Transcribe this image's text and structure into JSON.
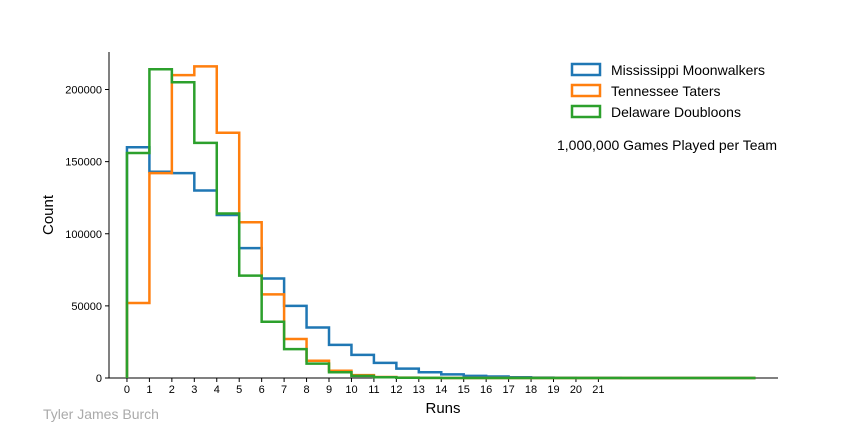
{
  "chart_data": {
    "type": "histogram-step",
    "xlabel": "Runs",
    "ylabel": "Count",
    "xlim": [
      -0.8,
      29
    ],
    "ylim": [
      0,
      226000
    ],
    "x_ticks": [
      0,
      1,
      2,
      3,
      4,
      5,
      6,
      7,
      8,
      9,
      10,
      11,
      12,
      13,
      14,
      15,
      16,
      17,
      18,
      19,
      20,
      21
    ],
    "y_ticks": [
      0,
      50000,
      100000,
      150000,
      200000
    ],
    "bin_edges": [
      0,
      1,
      2,
      3,
      4,
      5,
      6,
      7,
      8,
      9,
      10,
      11,
      12,
      13,
      14,
      15,
      16,
      17,
      18,
      19,
      20,
      21,
      22,
      23,
      24,
      25,
      26,
      27,
      28
    ],
    "grid": false,
    "legend_position": "top-right",
    "annotation": "1,000,000 Games Played per Team",
    "series": [
      {
        "name": "Mississippi Moonwalkers",
        "color": "#1f77b4",
        "values": [
          160000,
          143000,
          142000,
          130000,
          113000,
          90000,
          69000,
          50000,
          35000,
          23000,
          16000,
          10500,
          6500,
          4000,
          2500,
          1500,
          1000,
          500,
          300,
          200,
          100,
          50,
          20,
          10,
          5,
          3,
          2,
          1
        ]
      },
      {
        "name": "Tennessee Taters",
        "color": "#ff7f0e",
        "values": [
          52000,
          142000,
          210000,
          216000,
          170000,
          108000,
          58000,
          27000,
          12000,
          5000,
          2000,
          700,
          300,
          100,
          40,
          10,
          5,
          0,
          0,
          0,
          0,
          0,
          0,
          0,
          0,
          0,
          0,
          0
        ]
      },
      {
        "name": "Delaware Doubloons",
        "color": "#2ca02c",
        "values": [
          156000,
          214000,
          205000,
          163000,
          114000,
          71000,
          39000,
          20000,
          10000,
          4000,
          1500,
          500,
          200,
          80,
          30,
          10,
          5,
          0,
          0,
          0,
          0,
          0,
          0,
          0,
          0,
          0,
          0,
          0
        ]
      }
    ]
  },
  "credit": "Tyler James Burch"
}
